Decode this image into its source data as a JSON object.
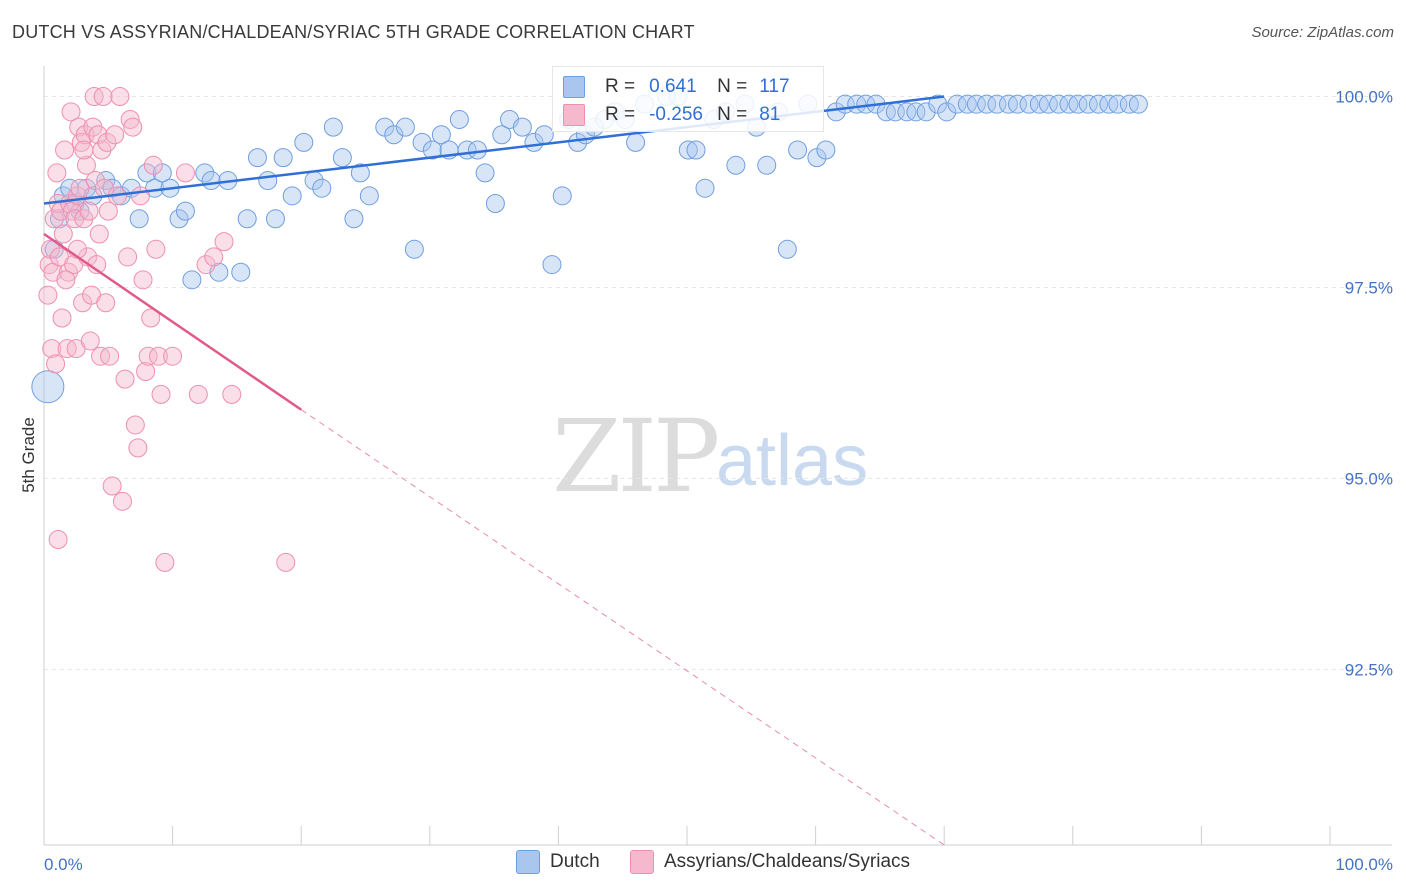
{
  "title": "DUTCH VS ASSYRIAN/CHALDEAN/SYRIAC 5TH GRADE CORRELATION CHART",
  "source": "Source: ZipAtlas.com",
  "watermark": {
    "zip": "ZIP",
    "atlas": "atlas"
  },
  "legend": {
    "r_label": "R =",
    "n_label": "N =",
    "dutch": {
      "r": "0.641",
      "n": "117",
      "color": "#a9c6ee"
    },
    "assyrian": {
      "r": "-0.256",
      "n": "81",
      "color": "#f5b8cd"
    }
  },
  "bottom_legend": {
    "dutch": "Dutch",
    "assyrian": "Assyrians/Chaldeans/Syriacs"
  },
  "chart_data": {
    "type": "scatter",
    "title": "DUTCH VS ASSYRIAN/CHALDEAN/SYRIAC 5TH GRADE CORRELATION CHART",
    "xlabel": "",
    "ylabel": "5th Grade",
    "xlim": [
      0,
      100
    ],
    "ylim": [
      90.2,
      100.4
    ],
    "x_ticks": [
      "0.0%",
      "100.0%"
    ],
    "y_ticks": [
      {
        "v": 100.0,
        "label": "100.0%"
      },
      {
        "v": 97.5,
        "label": "97.5%"
      },
      {
        "v": 95.0,
        "label": "95.0%"
      },
      {
        "v": 92.5,
        "label": "92.5%"
      }
    ],
    "grid": true,
    "series": [
      {
        "name": "Dutch",
        "color": "#6f9fe0",
        "trend": {
          "x1": 0,
          "y1": 98.6,
          "x2": 70,
          "y2": 100.0,
          "color": "#2f6fd6",
          "dashed": false
        },
        "points": [
          [
            0.3,
            96.2
          ],
          [
            0.8,
            98.0
          ],
          [
            1.2,
            98.4
          ],
          [
            1.5,
            98.7
          ],
          [
            2.0,
            98.8
          ],
          [
            2.4,
            98.6
          ],
          [
            2.8,
            98.5
          ],
          [
            3.3,
            98.8
          ],
          [
            3.8,
            98.7
          ],
          [
            4.8,
            98.9
          ],
          [
            5.3,
            98.8
          ],
          [
            6.0,
            98.7
          ],
          [
            6.8,
            98.8
          ],
          [
            7.4,
            98.4
          ],
          [
            8.0,
            99.0
          ],
          [
            8.6,
            98.8
          ],
          [
            9.2,
            99.0
          ],
          [
            9.8,
            98.8
          ],
          [
            10.5,
            98.4
          ],
          [
            11.0,
            98.5
          ],
          [
            11.5,
            97.6
          ],
          [
            12.5,
            99.0
          ],
          [
            13.0,
            98.9
          ],
          [
            13.6,
            97.7
          ],
          [
            14.3,
            98.9
          ],
          [
            15.3,
            97.7
          ],
          [
            15.8,
            98.4
          ],
          [
            16.6,
            99.2
          ],
          [
            17.4,
            98.9
          ],
          [
            18.0,
            98.4
          ],
          [
            18.6,
            99.2
          ],
          [
            19.3,
            98.7
          ],
          [
            20.2,
            99.4
          ],
          [
            21.0,
            98.9
          ],
          [
            21.6,
            98.8
          ],
          [
            22.5,
            99.6
          ],
          [
            23.2,
            99.2
          ],
          [
            24.1,
            98.4
          ],
          [
            24.6,
            99.0
          ],
          [
            25.3,
            98.7
          ],
          [
            26.5,
            99.6
          ],
          [
            27.2,
            99.5
          ],
          [
            28.1,
            99.6
          ],
          [
            28.8,
            98.0
          ],
          [
            29.4,
            99.4
          ],
          [
            30.2,
            99.3
          ],
          [
            30.9,
            99.5
          ],
          [
            31.5,
            99.3
          ],
          [
            32.3,
            99.7
          ],
          [
            32.9,
            99.3
          ],
          [
            33.7,
            99.3
          ],
          [
            34.3,
            99.0
          ],
          [
            35.1,
            98.6
          ],
          [
            35.6,
            99.5
          ],
          [
            36.2,
            99.7
          ],
          [
            37.2,
            99.6
          ],
          [
            38.1,
            99.4
          ],
          [
            38.9,
            99.5
          ],
          [
            39.5,
            97.8
          ],
          [
            40.3,
            98.7
          ],
          [
            40.8,
            99.7
          ],
          [
            41.5,
            99.4
          ],
          [
            42.1,
            99.5
          ],
          [
            42.8,
            99.6
          ],
          [
            43.6,
            99.7
          ],
          [
            44.4,
            99.8
          ],
          [
            45.2,
            99.7
          ],
          [
            46.0,
            99.4
          ],
          [
            46.7,
            99.9
          ],
          [
            48.4,
            100.0
          ],
          [
            49.3,
            100.0
          ],
          [
            50.1,
            99.3
          ],
          [
            50.7,
            99.3
          ],
          [
            51.4,
            98.8
          ],
          [
            52.1,
            99.7
          ],
          [
            53.0,
            99.8
          ],
          [
            53.8,
            99.1
          ],
          [
            54.5,
            99.9
          ],
          [
            55.4,
            99.6
          ],
          [
            56.2,
            99.1
          ],
          [
            57.1,
            99.8
          ],
          [
            57.8,
            98.0
          ],
          [
            58.6,
            99.3
          ],
          [
            59.4,
            99.9
          ],
          [
            60.1,
            99.2
          ],
          [
            60.8,
            99.3
          ],
          [
            61.6,
            99.8
          ],
          [
            62.3,
            99.9
          ],
          [
            63.2,
            99.9
          ],
          [
            63.9,
            99.9
          ],
          [
            64.7,
            99.9
          ],
          [
            65.5,
            99.8
          ],
          [
            66.2,
            99.8
          ],
          [
            67.1,
            99.8
          ],
          [
            67.8,
            99.8
          ],
          [
            68.6,
            99.8
          ],
          [
            69.5,
            99.9
          ],
          [
            70.2,
            99.8
          ],
          [
            71.0,
            99.9
          ],
          [
            71.8,
            99.9
          ],
          [
            72.5,
            99.9
          ],
          [
            73.3,
            99.9
          ],
          [
            74.1,
            99.9
          ],
          [
            75.0,
            99.9
          ],
          [
            75.7,
            99.9
          ],
          [
            76.6,
            99.9
          ],
          [
            77.4,
            99.9
          ],
          [
            78.1,
            99.9
          ],
          [
            78.9,
            99.9
          ],
          [
            79.7,
            99.9
          ],
          [
            80.4,
            99.9
          ],
          [
            81.2,
            99.9
          ],
          [
            82.0,
            99.9
          ],
          [
            82.8,
            99.9
          ],
          [
            83.5,
            99.9
          ],
          [
            84.4,
            99.9
          ],
          [
            85.1,
            99.9
          ]
        ]
      },
      {
        "name": "Assyrians/Chaldeans/Syriacs",
        "color": "#ef8fb0",
        "trend": {
          "x1": 0,
          "y1": 98.2,
          "x2": 20,
          "y2": 95.9,
          "x3": 70,
          "y3": 90.2,
          "color": "#e05a8a",
          "dashed_after": 20
        },
        "points": [
          [
            0.3,
            97.4
          ],
          [
            0.4,
            97.8
          ],
          [
            0.5,
            98.0
          ],
          [
            0.6,
            96.7
          ],
          [
            0.7,
            97.7
          ],
          [
            0.8,
            98.4
          ],
          [
            1.0,
            99.0
          ],
          [
            1.1,
            98.6
          ],
          [
            1.2,
            97.9
          ],
          [
            1.3,
            98.5
          ],
          [
            1.4,
            97.1
          ],
          [
            1.5,
            98.2
          ],
          [
            1.6,
            99.3
          ],
          [
            1.8,
            96.7
          ],
          [
            1.9,
            97.7
          ],
          [
            2.0,
            98.6
          ],
          [
            2.1,
            99.8
          ],
          [
            2.2,
            98.5
          ],
          [
            2.3,
            97.8
          ],
          [
            2.4,
            98.4
          ],
          [
            2.5,
            96.7
          ],
          [
            2.6,
            98.7
          ],
          [
            2.7,
            99.6
          ],
          [
            2.8,
            98.8
          ],
          [
            2.9,
            99.4
          ],
          [
            3.0,
            97.3
          ],
          [
            3.1,
            98.4
          ],
          [
            3.2,
            99.5
          ],
          [
            3.3,
            99.1
          ],
          [
            3.4,
            97.9
          ],
          [
            3.5,
            98.5
          ],
          [
            3.6,
            96.8
          ],
          [
            3.7,
            97.4
          ],
          [
            3.8,
            99.6
          ],
          [
            3.9,
            100.0
          ],
          [
            4.0,
            98.9
          ],
          [
            4.1,
            97.8
          ],
          [
            4.2,
            99.5
          ],
          [
            4.4,
            96.6
          ],
          [
            4.5,
            99.3
          ],
          [
            4.6,
            100.0
          ],
          [
            4.7,
            98.8
          ],
          [
            4.8,
            97.3
          ],
          [
            4.9,
            99.4
          ],
          [
            5.0,
            98.5
          ],
          [
            5.1,
            96.6
          ],
          [
            5.3,
            94.9
          ],
          [
            5.5,
            99.5
          ],
          [
            5.7,
            98.7
          ],
          [
            5.9,
            100.0
          ],
          [
            6.1,
            94.7
          ],
          [
            6.3,
            96.3
          ],
          [
            6.5,
            97.9
          ],
          [
            6.7,
            99.7
          ],
          [
            6.9,
            99.6
          ],
          [
            7.1,
            95.7
          ],
          [
            7.3,
            95.4
          ],
          [
            7.5,
            98.7
          ],
          [
            7.7,
            97.6
          ],
          [
            7.9,
            96.4
          ],
          [
            8.1,
            96.6
          ],
          [
            8.3,
            97.1
          ],
          [
            8.5,
            99.1
          ],
          [
            8.7,
            98.0
          ],
          [
            8.9,
            96.6
          ],
          [
            9.1,
            96.1
          ],
          [
            9.4,
            93.9
          ],
          [
            10.0,
            96.6
          ],
          [
            11.0,
            99.0
          ],
          [
            12.0,
            96.1
          ],
          [
            12.6,
            97.8
          ],
          [
            13.2,
            97.9
          ],
          [
            14.0,
            98.1
          ],
          [
            14.6,
            96.1
          ],
          [
            18.8,
            93.9
          ],
          [
            1.1,
            94.2
          ],
          [
            0.9,
            96.5
          ],
          [
            1.7,
            97.6
          ],
          [
            2.6,
            98.0
          ],
          [
            3.1,
            99.3
          ],
          [
            4.3,
            98.2
          ]
        ]
      }
    ]
  }
}
